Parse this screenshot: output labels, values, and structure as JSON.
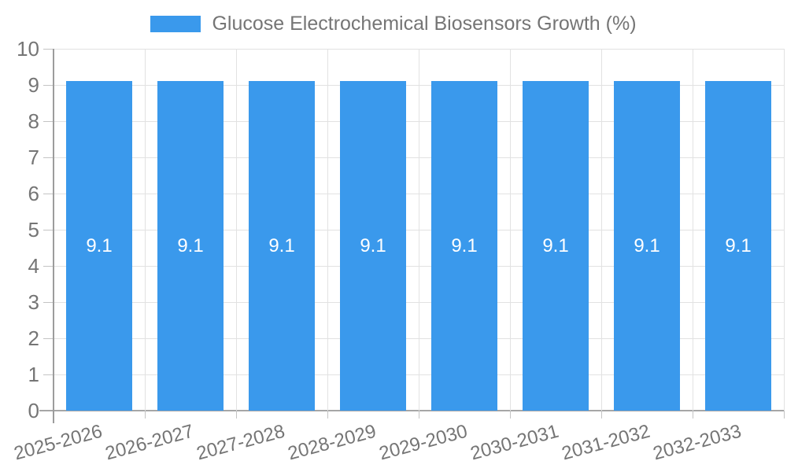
{
  "legend": {
    "label": "Glucose Electrochemical Biosensors Growth (%)"
  },
  "chart_data": {
    "type": "bar",
    "title": "Glucose Electrochemical Biosensors Growth (%)",
    "categories": [
      "2025-2026",
      "2026-2027",
      "2027-2028",
      "2028-2029",
      "2029-2030",
      "2030-2031",
      "2031-2032",
      "2032-2033"
    ],
    "values": [
      9.1,
      9.1,
      9.1,
      9.1,
      9.1,
      9.1,
      9.1,
      9.1
    ],
    "value_labels": [
      "9.1",
      "9.1",
      "9.1",
      "9.1",
      "9.1",
      "9.1",
      "9.1",
      "9.1"
    ],
    "xlabel": "",
    "ylabel": "",
    "ylim": [
      0,
      10
    ],
    "yticks": [
      0,
      1,
      2,
      3,
      4,
      5,
      6,
      7,
      8,
      9,
      10
    ],
    "grid": true,
    "legend_position": "top-center",
    "x_label_rotation_deg": -15,
    "colors": {
      "bar": "#3a99ec",
      "value_label": "#ffffff",
      "axis_text": "#757575",
      "grid_line": "#e2e2e2",
      "axis_line": "#a6a6a6",
      "tick": "#c4c4c4"
    }
  }
}
